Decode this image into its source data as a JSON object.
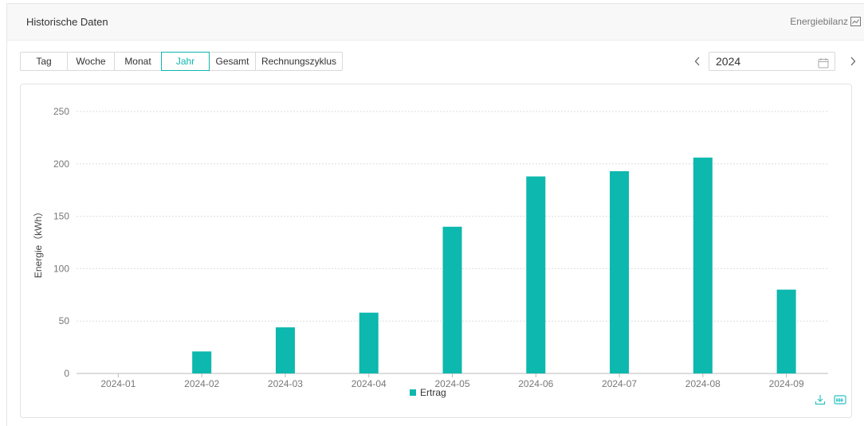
{
  "header": {
    "title": "Historische Daten",
    "energy_link": "Energiebilanz"
  },
  "tabs": [
    {
      "label": "Tag",
      "active": false
    },
    {
      "label": "Woche",
      "active": false
    },
    {
      "label": "Monat",
      "active": false
    },
    {
      "label": "Jahr",
      "active": true
    },
    {
      "label": "Gesamt",
      "active": false
    },
    {
      "label": "Rechnungszyklus",
      "active": false
    }
  ],
  "date_picker": {
    "value": "2024",
    "prev_icon": "chevron-left-icon",
    "next_icon": "chevron-right-icon",
    "icon": "calendar-icon"
  },
  "colors": {
    "accent": "#0cb8b0",
    "bar": "#0db8ae",
    "grid": "#dddddd",
    "axis_text": "#666666"
  },
  "chart_data": {
    "type": "bar",
    "ylabel": "Energie（kWh）",
    "ylim": [
      0,
      250
    ],
    "yticks": [
      0,
      50,
      100,
      150,
      200,
      250
    ],
    "categories": [
      "2024-01",
      "2024-02",
      "2024-03",
      "2024-04",
      "2024-05",
      "2024-06",
      "2024-07",
      "2024-08",
      "2024-09"
    ],
    "series": [
      {
        "name": "Ertrag",
        "values": [
          0,
          21,
          44,
          58,
          140,
          188,
          193,
          206,
          80
        ]
      }
    ],
    "grid": true,
    "legend": "bottom-center"
  },
  "toolbox": {
    "download_icon": "download-icon",
    "data_view_icon": "data-view-icon"
  }
}
